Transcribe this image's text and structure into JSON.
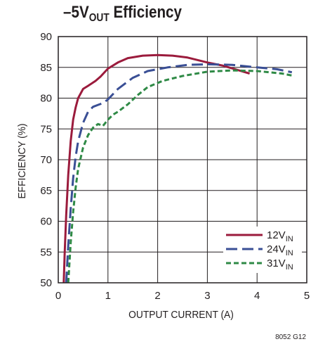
{
  "title": {
    "main": "–5V",
    "sub": "OUT",
    "tail": " Efficiency"
  },
  "figure_code": "8052 G12",
  "colors": {
    "12V": "#9b1b3c",
    "24V": "#3a4f95",
    "31V": "#2f8a46",
    "grid": "#231f20"
  },
  "chart_data": {
    "type": "line",
    "title": "–5VOUT Efficiency",
    "xlabel": "OUTPUT CURRENT (A)",
    "ylabel": "EFFICIENCY (%)",
    "xlim": [
      0,
      5
    ],
    "ylim": [
      50,
      90
    ],
    "xticks": [
      "0",
      "1",
      "2",
      "3",
      "4",
      "5"
    ],
    "yticks": [
      "50",
      "55",
      "60",
      "65",
      "70",
      "75",
      "80",
      "85",
      "90"
    ],
    "grid": true,
    "legend_position": "bottom-right",
    "series": [
      {
        "name": "12V",
        "name_sub": "IN",
        "style": "solid",
        "color": "#9b1b3c",
        "x": [
          0.11,
          0.13,
          0.16,
          0.2,
          0.25,
          0.3,
          0.35,
          0.4,
          0.5,
          0.6,
          0.75,
          0.85,
          1.0,
          1.2,
          1.4,
          1.7,
          2.0,
          2.3,
          2.6,
          3.0,
          3.3,
          3.6,
          3.85
        ],
        "y": [
          50.0,
          55.0,
          61.0,
          67.5,
          73.0,
          76.5,
          78.5,
          80.0,
          81.5,
          82.0,
          82.8,
          83.5,
          84.8,
          85.8,
          86.5,
          86.9,
          87.0,
          86.9,
          86.6,
          85.8,
          85.3,
          84.6,
          84.0
        ]
      },
      {
        "name": "24V",
        "name_sub": "IN",
        "style": "dashed",
        "color": "#3a4f95",
        "x": [
          0.16,
          0.2,
          0.25,
          0.3,
          0.35,
          0.4,
          0.5,
          0.6,
          0.7,
          0.8,
          0.9,
          1.0,
          1.2,
          1.5,
          1.8,
          2.2,
          2.6,
          3.0,
          3.5,
          4.0,
          4.4,
          4.7
        ],
        "y": [
          50.0,
          56.0,
          62.0,
          67.0,
          70.5,
          73.0,
          76.0,
          77.8,
          78.6,
          78.9,
          79.2,
          79.8,
          81.5,
          83.3,
          84.4,
          85.0,
          85.4,
          85.5,
          85.4,
          85.0,
          84.7,
          84.2
        ]
      },
      {
        "name": "31V",
        "name_sub": "IN",
        "style": "dashed-short",
        "color": "#2f8a46",
        "x": [
          0.2,
          0.25,
          0.3,
          0.35,
          0.4,
          0.5,
          0.6,
          0.7,
          0.8,
          0.9,
          1.0,
          1.1,
          1.2,
          1.4,
          1.6,
          1.8,
          2.1,
          2.5,
          3.0,
          3.5,
          4.0,
          4.5,
          4.75
        ],
        "y": [
          50.0,
          56.5,
          61.5,
          65.5,
          68.5,
          72.0,
          74.0,
          75.2,
          75.8,
          75.5,
          76.5,
          77.3,
          77.8,
          79.0,
          80.5,
          81.8,
          82.8,
          83.6,
          84.3,
          84.5,
          84.4,
          84.0,
          83.6
        ]
      }
    ]
  }
}
